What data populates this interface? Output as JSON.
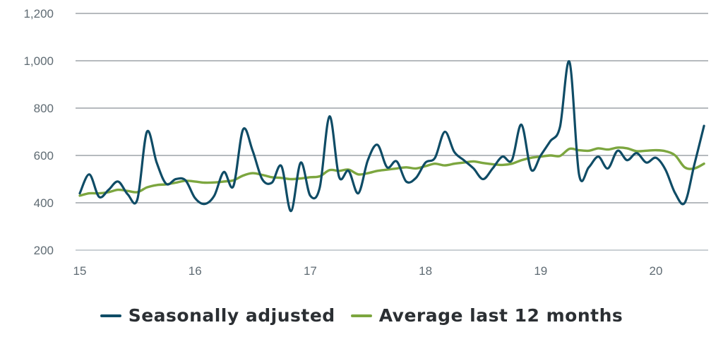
{
  "chart_data": {
    "type": "line",
    "title": "",
    "xlabel": "",
    "ylabel": "",
    "ylim": [
      200,
      1200
    ],
    "yticks": [
      "200",
      "400",
      "600",
      "800",
      "1,000",
      "1,200"
    ],
    "ytick_values": [
      200,
      400,
      600,
      800,
      1000,
      1200
    ],
    "xlim": [
      15,
      20.45
    ],
    "xticks": [
      "15",
      "16",
      "17",
      "18",
      "19",
      "20"
    ],
    "xtick_values": [
      15,
      16,
      17,
      18,
      19,
      20
    ],
    "grid": "horizontal",
    "legend_position": "bottom",
    "series": [
      {
        "name": "Seasonally adjusted",
        "color": "#0f4c66",
        "x": [
          15.0,
          15.083,
          15.167,
          15.25,
          15.333,
          15.417,
          15.5,
          15.583,
          15.667,
          15.75,
          15.833,
          15.917,
          16.0,
          16.083,
          16.167,
          16.25,
          16.333,
          16.417,
          16.5,
          16.583,
          16.667,
          16.75,
          16.833,
          16.917,
          17.0,
          17.083,
          17.167,
          17.25,
          17.333,
          17.417,
          17.5,
          17.583,
          17.667,
          17.75,
          17.833,
          17.917,
          18.0,
          18.083,
          18.167,
          18.25,
          18.333,
          18.417,
          18.5,
          18.583,
          18.667,
          18.75,
          18.833,
          18.917,
          19.0,
          19.083,
          19.167,
          19.25,
          19.333,
          19.417,
          19.5,
          19.583,
          19.667,
          19.75,
          19.833,
          19.917,
          20.0,
          20.083,
          20.167,
          20.25,
          20.333,
          20.417
        ],
        "values": [
          440,
          520,
          425,
          455,
          490,
          435,
          415,
          700,
          570,
          480,
          500,
          495,
          420,
          395,
          430,
          530,
          470,
          710,
          620,
          500,
          485,
          555,
          365,
          570,
          430,
          465,
          765,
          510,
          535,
          440,
          580,
          645,
          550,
          575,
          490,
          505,
          570,
          590,
          700,
          615,
          580,
          545,
          500,
          545,
          595,
          580,
          730,
          540,
          600,
          660,
          720,
          995,
          520,
          550,
          595,
          545,
          620,
          580,
          610,
          570,
          590,
          540,
          440,
          400,
          560,
          725
        ]
      },
      {
        "name": "Average last 12 months",
        "color": "#7ca63f",
        "x": [
          15.0,
          15.083,
          15.167,
          15.25,
          15.333,
          15.417,
          15.5,
          15.583,
          15.667,
          15.75,
          15.833,
          15.917,
          16.0,
          16.083,
          16.167,
          16.25,
          16.333,
          16.417,
          16.5,
          16.583,
          16.667,
          16.75,
          16.833,
          16.917,
          17.0,
          17.083,
          17.167,
          17.25,
          17.333,
          17.417,
          17.5,
          17.583,
          17.667,
          17.75,
          17.833,
          17.917,
          18.0,
          18.083,
          18.167,
          18.25,
          18.333,
          18.417,
          18.5,
          18.583,
          18.667,
          18.75,
          18.833,
          18.917,
          19.0,
          19.083,
          19.167,
          19.25,
          19.333,
          19.417,
          19.5,
          19.583,
          19.667,
          19.75,
          19.833,
          19.917,
          20.0,
          20.083,
          20.167,
          20.25,
          20.333,
          20.417
        ],
        "values": [
          430,
          440,
          440,
          445,
          455,
          450,
          445,
          465,
          475,
          478,
          485,
          493,
          490,
          485,
          486,
          490,
          495,
          515,
          525,
          518,
          508,
          505,
          500,
          503,
          508,
          512,
          538,
          535,
          540,
          520,
          525,
          535,
          540,
          545,
          550,
          545,
          555,
          565,
          558,
          565,
          570,
          575,
          568,
          563,
          560,
          565,
          580,
          590,
          595,
          600,
          598,
          628,
          622,
          620,
          630,
          625,
          633,
          630,
          618,
          620,
          622,
          618,
          600,
          550,
          545,
          565
        ]
      }
    ]
  }
}
